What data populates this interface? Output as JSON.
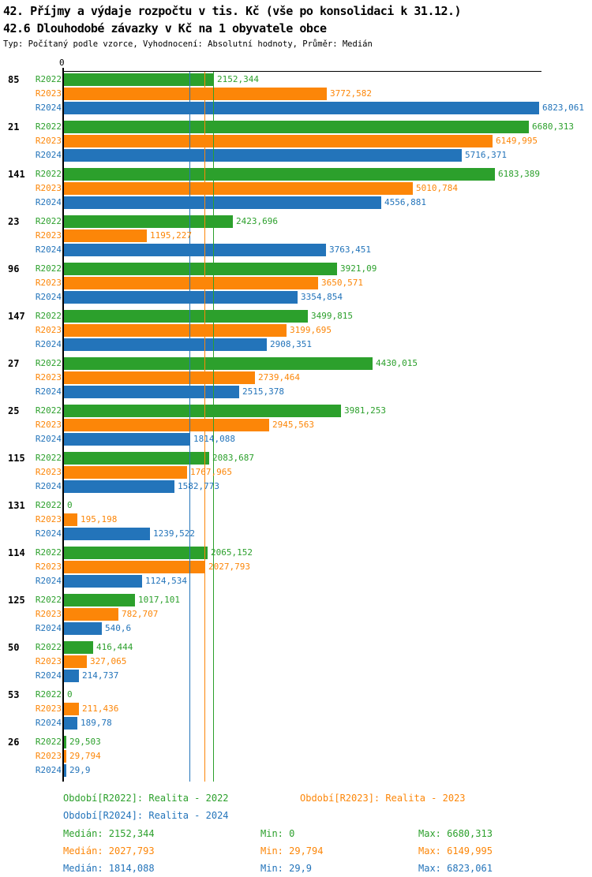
{
  "header": {
    "title_line1": "42. Příjmy a výdaje rozpočtu v tis. Kč (vše po konsolidaci k 31.12.)",
    "title_line2": "42.6 Dlouhodobé závazky v Kč na 1 obyvatele obce",
    "subtitle": "Typ: Počítaný podle vzorce, Vyhodnocení: Absolutní hodnoty, Průměr: Medián"
  },
  "colors": {
    "r2022": "#2ca02c",
    "r2023": "#fc8608",
    "r2024": "#2374ba",
    "axis": "#000000",
    "background": "#ffffff"
  },
  "axis": {
    "zero_label": "0"
  },
  "chart_data": {
    "type": "bar",
    "orientation": "horizontal",
    "title": "42. Příjmy a výdaje rozpočtu v tis. Kč (vše po konsolidaci k 31.12.)",
    "subtitle": "42.6 Dlouhodobé závazky v Kč na 1 obyvatele obce",
    "note": "Typ: Počítaný podle vzorce, Vyhodnocení: Absolutní hodnoty, Průměr: Medián",
    "value_axis": {
      "min": 0,
      "max": 6860,
      "zero_label": "0",
      "gridlines": false
    },
    "legend_position": "bottom",
    "series": [
      {
        "name": "R2022",
        "legend": "Období[R2022]: Realita - 2022",
        "color": "#2ca02c",
        "median": 2152.344,
        "min": 0,
        "max": 6680.313
      },
      {
        "name": "R2023",
        "legend": "Období[R2023]: Realita - 2023",
        "color": "#fc8608",
        "median": 2027.793,
        "min": 29.794,
        "max": 6149.995
      },
      {
        "name": "R2024",
        "legend": "Období[R2024]: Realita - 2024",
        "color": "#2374ba",
        "median": 1814.088,
        "min": 29.9,
        "max": 6823.061
      }
    ],
    "categories": [
      "85",
      "21",
      "141",
      "23",
      "96",
      "147",
      "27",
      "25",
      "115",
      "131",
      "114",
      "125",
      "50",
      "53",
      "26"
    ],
    "groups": [
      {
        "category": "85",
        "values": [
          2152.344,
          3772.582,
          6823.061
        ],
        "labels": [
          "2152,344",
          "3772,582",
          "6823,061"
        ]
      },
      {
        "category": "21",
        "values": [
          6680.313,
          6149.995,
          5716.371
        ],
        "labels": [
          "6680,313",
          "6149,995",
          "5716,371"
        ]
      },
      {
        "category": "141",
        "values": [
          6183.389,
          5010.784,
          4556.881
        ],
        "labels": [
          "6183,389",
          "5010,784",
          "4556,881"
        ]
      },
      {
        "category": "23",
        "values": [
          2423.696,
          1195.227,
          3763.451
        ],
        "labels": [
          "2423,696",
          "1195,227",
          "3763,451"
        ]
      },
      {
        "category": "96",
        "values": [
          3921.09,
          3650.571,
          3354.854
        ],
        "labels": [
          "3921,09",
          "3650,571",
          "3354,854"
        ]
      },
      {
        "category": "147",
        "values": [
          3499.815,
          3199.695,
          2908.351
        ],
        "labels": [
          "3499,815",
          "3199,695",
          "2908,351"
        ]
      },
      {
        "category": "27",
        "values": [
          4430.015,
          2739.464,
          2515.378
        ],
        "labels": [
          "4430,015",
          "2739,464",
          "2515,378"
        ]
      },
      {
        "category": "25",
        "values": [
          3981.253,
          2945.563,
          1814.088
        ],
        "labels": [
          "3981,253",
          "2945,563",
          "1814,088"
        ]
      },
      {
        "category": "115",
        "values": [
          2083.687,
          1767.965,
          1582.773
        ],
        "labels": [
          "2083,687",
          "1767,965",
          "1582,773"
        ]
      },
      {
        "category": "131",
        "values": [
          0,
          195.198,
          1239.522
        ],
        "labels": [
          "0",
          "195,198",
          "1239,522"
        ]
      },
      {
        "category": "114",
        "values": [
          2065.152,
          2027.793,
          1124.534
        ],
        "labels": [
          "2065,152",
          "2027,793",
          "1124,534"
        ]
      },
      {
        "category": "125",
        "values": [
          1017.101,
          782.707,
          540.6
        ],
        "labels": [
          "1017,101",
          "782,707",
          "540,6"
        ]
      },
      {
        "category": "50",
        "values": [
          416.444,
          327.065,
          214.737
        ],
        "labels": [
          "416,444",
          "327,065",
          "214,737"
        ]
      },
      {
        "category": "53",
        "values": [
          0,
          211.436,
          189.78
        ],
        "labels": [
          "0",
          "211,436",
          "189,78"
        ]
      },
      {
        "category": "26",
        "values": [
          29.503,
          29.794,
          29.9
        ],
        "labels": [
          "29,503",
          "29,794",
          "29,9"
        ]
      }
    ]
  },
  "legend": {
    "r2022": "Období[R2022]: Realita - 2022",
    "r2023": "Období[R2023]: Realita - 2023",
    "r2024": "Období[R2024]: Realita - 2024"
  },
  "stats": {
    "r2022": {
      "median": "Medián: 2152,344",
      "min": "Min: 0",
      "max": "Max: 6680,313"
    },
    "r2023": {
      "median": "Medián: 2027,793",
      "min": "Min: 29,794",
      "max": "Max: 6149,995"
    },
    "r2024": {
      "median": "Medián: 1814,088",
      "min": "Min: 29,9",
      "max": "Max: 6823,061"
    }
  }
}
